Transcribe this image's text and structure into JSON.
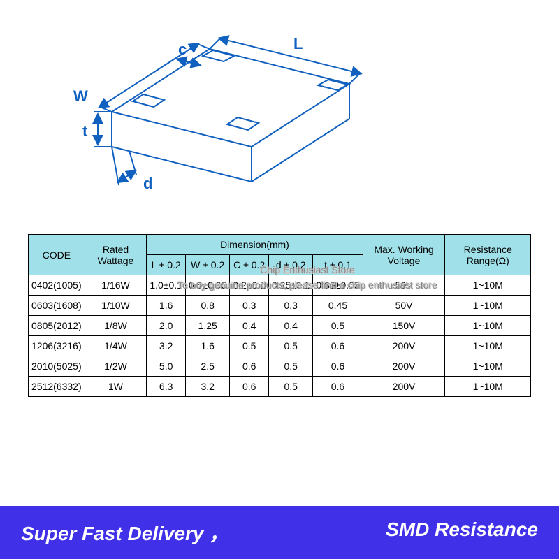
{
  "diagram": {
    "labels": {
      "L": "L",
      "W": "W",
      "c": "c",
      "t": "t",
      "d": "d"
    },
    "stroke": "#1060c0",
    "stroke_width": 2,
    "font_size": 22,
    "font_weight": "bold"
  },
  "watermark": {
    "line1": "Chip Enthusiast Store",
    "line2": "To buy genuine products, please find a chip enthusiast store"
  },
  "table": {
    "header_bg": "#a0e0e8",
    "border_color": "#000000",
    "columns": {
      "code": "CODE",
      "wattage": "Rated Wattage",
      "dimension": "Dimension(mm)",
      "dim_sub": [
        "L ± 0.2",
        "W ± 0.2",
        "C ± 0.2",
        "d ± 0.2",
        "t ± 0.1"
      ],
      "voltage": "Max. Working Voltage",
      "range": "Resistance Range(Ω)"
    },
    "rows": [
      {
        "code": "0402(1005)",
        "wattage": "1/16W",
        "dims": [
          "1.0±0.1",
          "0.5±0.05",
          "0.2±0.1",
          "0.25±0.1",
          "0.35±0.05"
        ],
        "voltage": "50V",
        "range": "1~10M"
      },
      {
        "code": "0603(1608)",
        "wattage": "1/10W",
        "dims": [
          "1.6",
          "0.8",
          "0.3",
          "0.3",
          "0.45"
        ],
        "voltage": "50V",
        "range": "1~10M"
      },
      {
        "code": "0805(2012)",
        "wattage": "1/8W",
        "dims": [
          "2.0",
          "1.25",
          "0.4",
          "0.4",
          "0.5"
        ],
        "voltage": "150V",
        "range": "1~10M"
      },
      {
        "code": "1206(3216)",
        "wattage": "1/4W",
        "dims": [
          "3.2",
          "1.6",
          "0.5",
          "0.5",
          "0.6"
        ],
        "voltage": "200V",
        "range": "1~10M"
      },
      {
        "code": "2010(5025)",
        "wattage": "1/2W",
        "dims": [
          "5.0",
          "2.5",
          "0.6",
          "0.5",
          "0.6"
        ],
        "voltage": "200V",
        "range": "1~10M"
      },
      {
        "code": "2512(6332)",
        "wattage": "1W",
        "dims": [
          "6.3",
          "3.2",
          "0.6",
          "0.5",
          "0.6"
        ],
        "voltage": "200V",
        "range": "1~10M"
      }
    ]
  },
  "footer": {
    "left": "Super Fast Delivery ，",
    "right": "SMD Resistance",
    "bg": "#4030e8",
    "color": "#ffffff"
  }
}
